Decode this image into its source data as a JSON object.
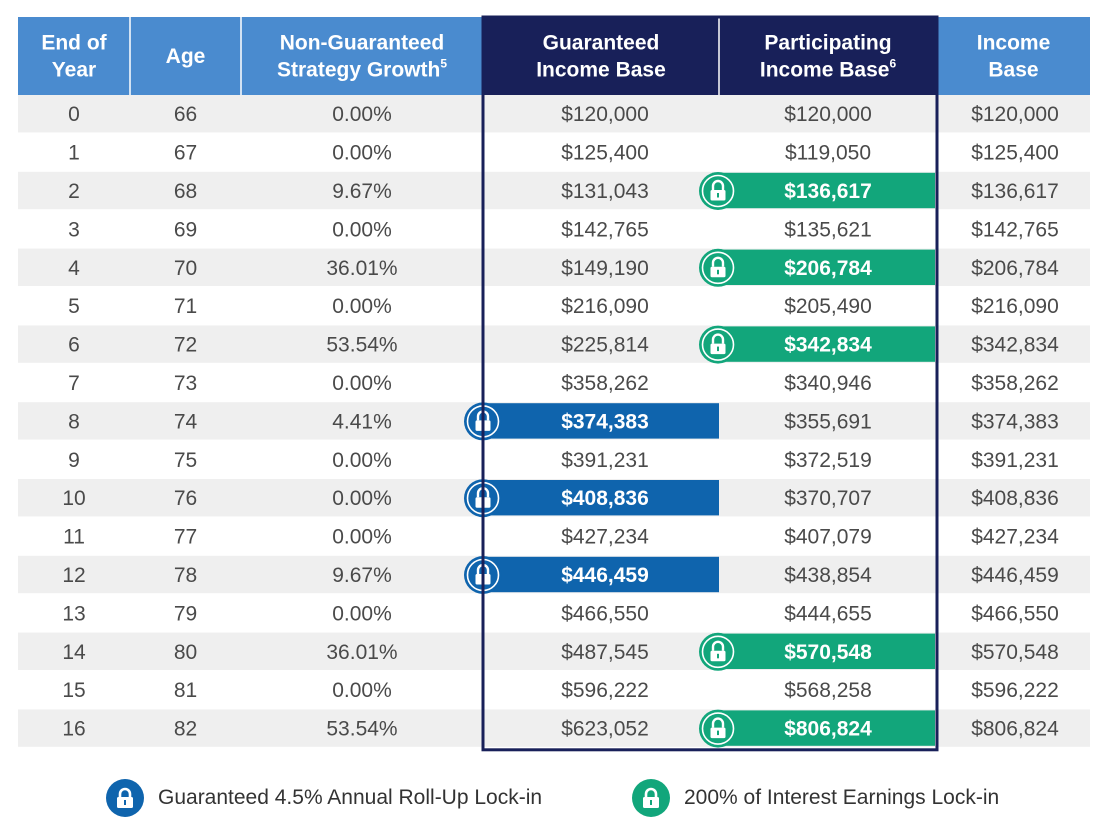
{
  "colors": {
    "header_light": "#4a8bcf",
    "header_dark": "#182059",
    "row_shade": "#efefef",
    "blue_lock": "#0f64ad",
    "green_lock": "#12a67b",
    "text": "#4a4a4a"
  },
  "legend": {
    "blue_label": "Guaranteed 4.5% Annual Roll-Up Lock-in",
    "blue_icon": "lock-icon",
    "green_label": "200% of Interest Earnings Lock-in",
    "green_icon": "lock-icon"
  },
  "chart_data": {
    "type": "table",
    "columns": [
      {
        "key": "year",
        "lines": [
          "End of",
          "Year"
        ],
        "sup": ""
      },
      {
        "key": "age",
        "lines": [
          "Age"
        ],
        "sup": ""
      },
      {
        "key": "growth",
        "lines": [
          "Non-Guaranteed",
          "Strategy Growth"
        ],
        "sup": "5"
      },
      {
        "key": "guaranteed",
        "lines": [
          "Guaranteed",
          "Income Base"
        ],
        "sup": ""
      },
      {
        "key": "participating",
        "lines": [
          "Participating",
          "Income Base"
        ],
        "sup": "6"
      },
      {
        "key": "income",
        "lines": [
          "Income",
          "Base"
        ],
        "sup": ""
      }
    ],
    "rows": [
      {
        "year": "0",
        "age": "66",
        "growth": "0.00%",
        "guaranteed": "$120,000",
        "participating": "$120,000",
        "income": "$120,000",
        "lock": ""
      },
      {
        "year": "1",
        "age": "67",
        "growth": "0.00%",
        "guaranteed": "$125,400",
        "participating": "$119,050",
        "income": "$125,400",
        "lock": ""
      },
      {
        "year": "2",
        "age": "68",
        "growth": "9.67%",
        "guaranteed": "$131,043",
        "participating": "$136,617",
        "income": "$136,617",
        "lock": "participating"
      },
      {
        "year": "3",
        "age": "69",
        "growth": "0.00%",
        "guaranteed": "$142,765",
        "participating": "$135,621",
        "income": "$142,765",
        "lock": ""
      },
      {
        "year": "4",
        "age": "70",
        "growth": "36.01%",
        "guaranteed": "$149,190",
        "participating": "$206,784",
        "income": "$206,784",
        "lock": "participating"
      },
      {
        "year": "5",
        "age": "71",
        "growth": "0.00%",
        "guaranteed": "$216,090",
        "participating": "$205,490",
        "income": "$216,090",
        "lock": ""
      },
      {
        "year": "6",
        "age": "72",
        "growth": "53.54%",
        "guaranteed": "$225,814",
        "participating": "$342,834",
        "income": "$342,834",
        "lock": "participating"
      },
      {
        "year": "7",
        "age": "73",
        "growth": "0.00%",
        "guaranteed": "$358,262",
        "participating": "$340,946",
        "income": "$358,262",
        "lock": ""
      },
      {
        "year": "8",
        "age": "74",
        "growth": "4.41%",
        "guaranteed": "$374,383",
        "participating": "$355,691",
        "income": "$374,383",
        "lock": "guaranteed"
      },
      {
        "year": "9",
        "age": "75",
        "growth": "0.00%",
        "guaranteed": "$391,231",
        "participating": "$372,519",
        "income": "$391,231",
        "lock": ""
      },
      {
        "year": "10",
        "age": "76",
        "growth": "0.00%",
        "guaranteed": "$408,836",
        "participating": "$370,707",
        "income": "$408,836",
        "lock": "guaranteed"
      },
      {
        "year": "11",
        "age": "77",
        "growth": "0.00%",
        "guaranteed": "$427,234",
        "participating": "$407,079",
        "income": "$427,234",
        "lock": ""
      },
      {
        "year": "12",
        "age": "78",
        "growth": "9.67%",
        "guaranteed": "$446,459",
        "participating": "$438,854",
        "income": "$446,459",
        "lock": "guaranteed"
      },
      {
        "year": "13",
        "age": "79",
        "growth": "0.00%",
        "guaranteed": "$466,550",
        "participating": "$444,655",
        "income": "$466,550",
        "lock": ""
      },
      {
        "year": "14",
        "age": "80",
        "growth": "36.01%",
        "guaranteed": "$487,545",
        "participating": "$570,548",
        "income": "$570,548",
        "lock": "participating"
      },
      {
        "year": "15",
        "age": "81",
        "growth": "0.00%",
        "guaranteed": "$596,222",
        "participating": "$568,258",
        "income": "$596,222",
        "lock": ""
      },
      {
        "year": "16",
        "age": "82",
        "growth": "53.54%",
        "guaranteed": "$623,052",
        "participating": "$806,824",
        "income": "$806,824",
        "lock": "participating"
      }
    ]
  }
}
